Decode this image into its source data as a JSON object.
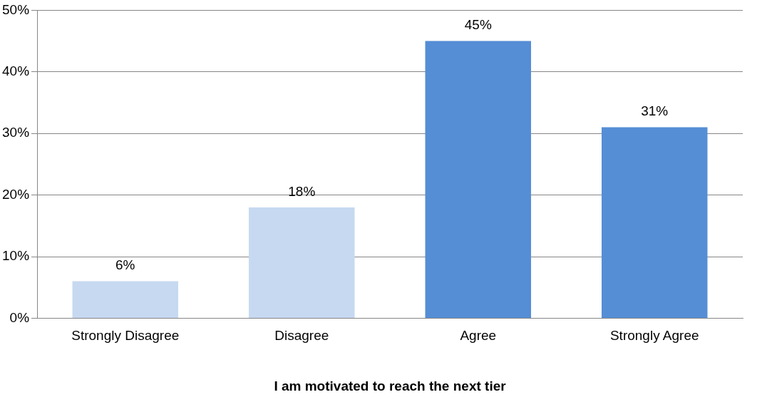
{
  "chart_data": {
    "type": "bar",
    "xlabel": "I am motivated to reach the next tier",
    "categories": [
      "Strongly Disagree",
      "Disagree",
      "Agree",
      "Strongly Agree"
    ],
    "values": [
      6,
      18,
      45,
      31
    ],
    "colors": [
      "#c6d9f1",
      "#c6d9f1",
      "#558ed5",
      "#558ed5"
    ],
    "value_labels": [
      "6%",
      "18%",
      "45%",
      "31%"
    ],
    "ylim": [
      0,
      50
    ],
    "yticks": [
      {
        "value": 0,
        "label": "0%"
      },
      {
        "value": 10,
        "label": "10%"
      },
      {
        "value": 20,
        "label": "20%"
      },
      {
        "value": 30,
        "label": "30%"
      },
      {
        "value": 40,
        "label": "40%"
      },
      {
        "value": 50,
        "label": "50%"
      }
    ],
    "grid": "y",
    "legend": false
  }
}
